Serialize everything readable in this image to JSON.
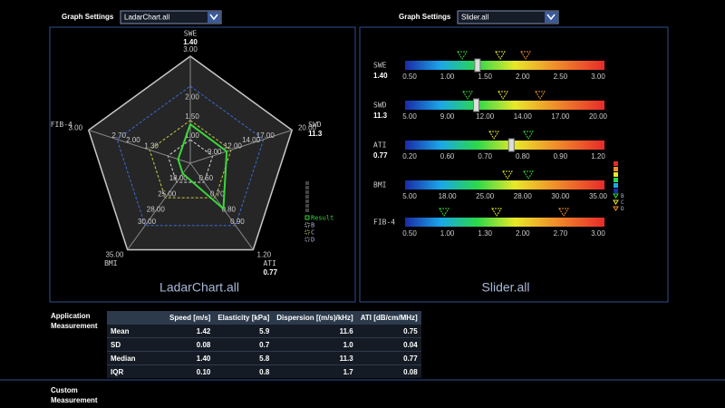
{
  "top_bar": {
    "left": {
      "label": "Graph Settings",
      "selected": "LadarChart.all"
    },
    "right": {
      "label": "Graph Settings",
      "selected": "Slider.all"
    }
  },
  "radar": {
    "caption": "LadarChart.all",
    "axes": [
      {
        "name": "SWE",
        "value": "1.40",
        "ticks": [
          "3.00",
          "2.00",
          "1.50",
          "1.00"
        ]
      },
      {
        "name": "SWD",
        "value": "11.3",
        "ticks": [
          "20.00",
          "17.00",
          "14.00",
          "12.00",
          "9.00"
        ]
      },
      {
        "name": "ATI",
        "value": "0.77",
        "ticks": [
          "1.20",
          "0.90",
          "0.80",
          "0.70",
          "0.60"
        ]
      },
      {
        "name": "BMI",
        "ticks": [
          "35.00",
          "30.00",
          "28.00",
          "25.00",
          "18.00"
        ]
      },
      {
        "name": "FIB-4",
        "ticks": [
          "3.00",
          "2.70",
          "2.00",
          "1.30"
        ]
      }
    ],
    "legend": [
      "Result",
      "B",
      "C",
      "D"
    ]
  },
  "slider": {
    "caption": "Slider.all",
    "rows": [
      {
        "name": "SWE",
        "value": "1.40",
        "ticks": [
          "0.50",
          "1.00",
          "1.50",
          "2.00",
          "2.50",
          "3.00"
        ]
      },
      {
        "name": "SWD",
        "value": "11.3",
        "ticks": [
          "5.00",
          "9.00",
          "12.00",
          "14.00",
          "17.00",
          "20.00"
        ]
      },
      {
        "name": "ATI",
        "value": "0.77",
        "ticks": [
          "0.20",
          "0.60",
          "0.70",
          "0.80",
          "0.90",
          "1.20"
        ]
      },
      {
        "name": "BMI",
        "ticks": [
          "5.00",
          "18.00",
          "25.00",
          "28.00",
          "30.00",
          "35.00"
        ]
      },
      {
        "name": "FIB-4",
        "ticks": [
          "0.50",
          "1.00",
          "1.30",
          "2.00",
          "2.70",
          "3.00"
        ]
      }
    ],
    "legend": [
      "B",
      "C",
      "D"
    ]
  },
  "application_measurement": {
    "title": "Application Measurement",
    "columns": [
      "Speed [m/s]",
      "Elasticity [kPa]",
      "Dispersion [(m/s)/kHz]",
      "ATI [dB/cm/MHz]"
    ],
    "rows": [
      {
        "label": "Mean",
        "cells": [
          "1.42",
          "5.9",
          "11.6",
          "0.75"
        ]
      },
      {
        "label": "SD",
        "cells": [
          "0.08",
          "0.7",
          "1.0",
          "0.04"
        ]
      },
      {
        "label": "Median",
        "cells": [
          "1.40",
          "5.8",
          "11.3",
          "0.77"
        ]
      },
      {
        "label": "IQR",
        "cells": [
          "0.10",
          "0.8",
          "1.7",
          "0.08"
        ]
      }
    ]
  },
  "custom_measurement": {
    "title": "Custom Measurement"
  }
}
